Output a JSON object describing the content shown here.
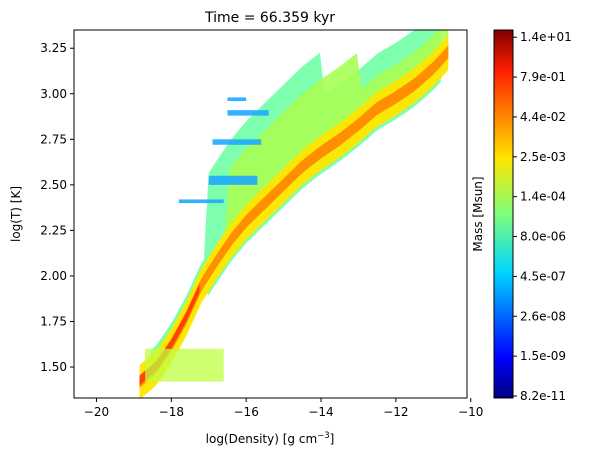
{
  "chart_data": {
    "type": "heatmap",
    "title": "Time = 66.359 kyr",
    "xlabel": "log(Density) [g cm",
    "xlabel_exponent": "−3",
    "xlabel_close": "]",
    "ylabel": "log(T) [K]",
    "xlim": [
      -20.6,
      -10.1
    ],
    "ylim": [
      1.33,
      3.35
    ],
    "x_ticks": [
      -20,
      -18,
      -16,
      -14,
      -12,
      -10
    ],
    "x_tick_labels": [
      "−20",
      "−18",
      "−16",
      "−14",
      "−12",
      "−10"
    ],
    "y_ticks": [
      1.5,
      1.75,
      2.0,
      2.25,
      2.5,
      2.75,
      3.0,
      3.25
    ],
    "y_tick_labels": [
      "1.50",
      "1.75",
      "2.00",
      "2.25",
      "2.50",
      "2.75",
      "3.00",
      "3.25"
    ],
    "colormap": "jet",
    "colorbar": {
      "label": "Mass [Msun]",
      "scale": "log",
      "range": [
        8.2e-11,
        14
      ],
      "tick_labels": [
        "8.2e-11",
        "1.5e-09",
        "2.6e-08",
        "4.5e-07",
        "8.0e-06",
        "1.4e-04",
        "2.5e-03",
        "4.4e-02",
        "7.9e-01",
        "1.4e+01"
      ]
    },
    "ridge": {
      "description_values": "peak mass along the main density-temperature relation",
      "x": [
        -18.85,
        -18.4,
        -18.0,
        -17.6,
        -17.2,
        -16.8,
        -16.4,
        -16.0,
        -15.5,
        -15.0,
        -14.5,
        -14.0,
        -13.5,
        -13.0,
        -12.5,
        -12.0,
        -11.5,
        -11.0,
        -10.6
      ],
      "y": [
        1.42,
        1.5,
        1.62,
        1.77,
        1.95,
        2.08,
        2.2,
        2.3,
        2.4,
        2.5,
        2.6,
        2.68,
        2.75,
        2.83,
        2.92,
        2.98,
        3.05,
        3.14,
        3.23
      ]
    },
    "grid": false
  }
}
